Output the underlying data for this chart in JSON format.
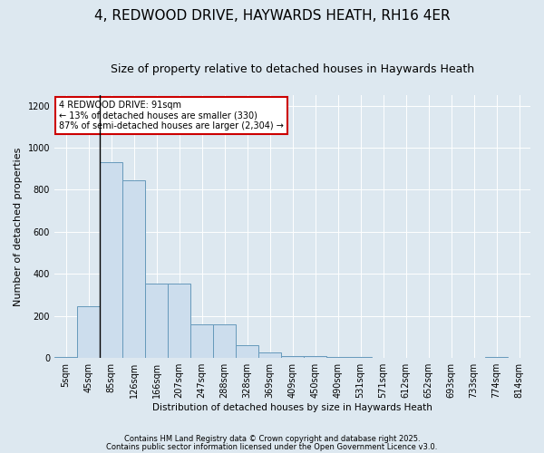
{
  "title": "4, REDWOOD DRIVE, HAYWARDS HEATH, RH16 4ER",
  "subtitle": "Size of property relative to detached houses in Haywards Heath",
  "xlabel": "Distribution of detached houses by size in Haywards Heath",
  "ylabel": "Number of detached properties",
  "bin_labels": [
    "5sqm",
    "45sqm",
    "85sqm",
    "126sqm",
    "166sqm",
    "207sqm",
    "247sqm",
    "288sqm",
    "328sqm",
    "369sqm",
    "409sqm",
    "450sqm",
    "490sqm",
    "531sqm",
    "571sqm",
    "612sqm",
    "652sqm",
    "693sqm",
    "733sqm",
    "774sqm",
    "814sqm"
  ],
  "bar_values": [
    5,
    245,
    930,
    845,
    355,
    355,
    160,
    160,
    60,
    25,
    10,
    10,
    5,
    5,
    0,
    0,
    0,
    0,
    0,
    5,
    0
  ],
  "bar_color": "#ccdded",
  "bar_edge_color": "#6699bb",
  "vline_x": 1.5,
  "vline_color": "#000000",
  "annotation_text": "4 REDWOOD DRIVE: 91sqm\n← 13% of detached houses are smaller (330)\n87% of semi-detached houses are larger (2,304) →",
  "annotation_box_color": "#ffffff",
  "annotation_box_edge": "#cc0000",
  "footer1": "Contains HM Land Registry data © Crown copyright and database right 2025.",
  "footer2": "Contains public sector information licensed under the Open Government Licence v3.0.",
  "bg_color": "#dde8f0",
  "ylim": [
    0,
    1250
  ],
  "yticks": [
    0,
    200,
    400,
    600,
    800,
    1000,
    1200
  ],
  "title_fontsize": 11,
  "subtitle_fontsize": 9,
  "axis_fontsize": 7,
  "ylabel_fontsize": 8,
  "xlabel_fontsize": 7.5,
  "footer_fontsize": 6,
  "annot_fontsize": 7
}
